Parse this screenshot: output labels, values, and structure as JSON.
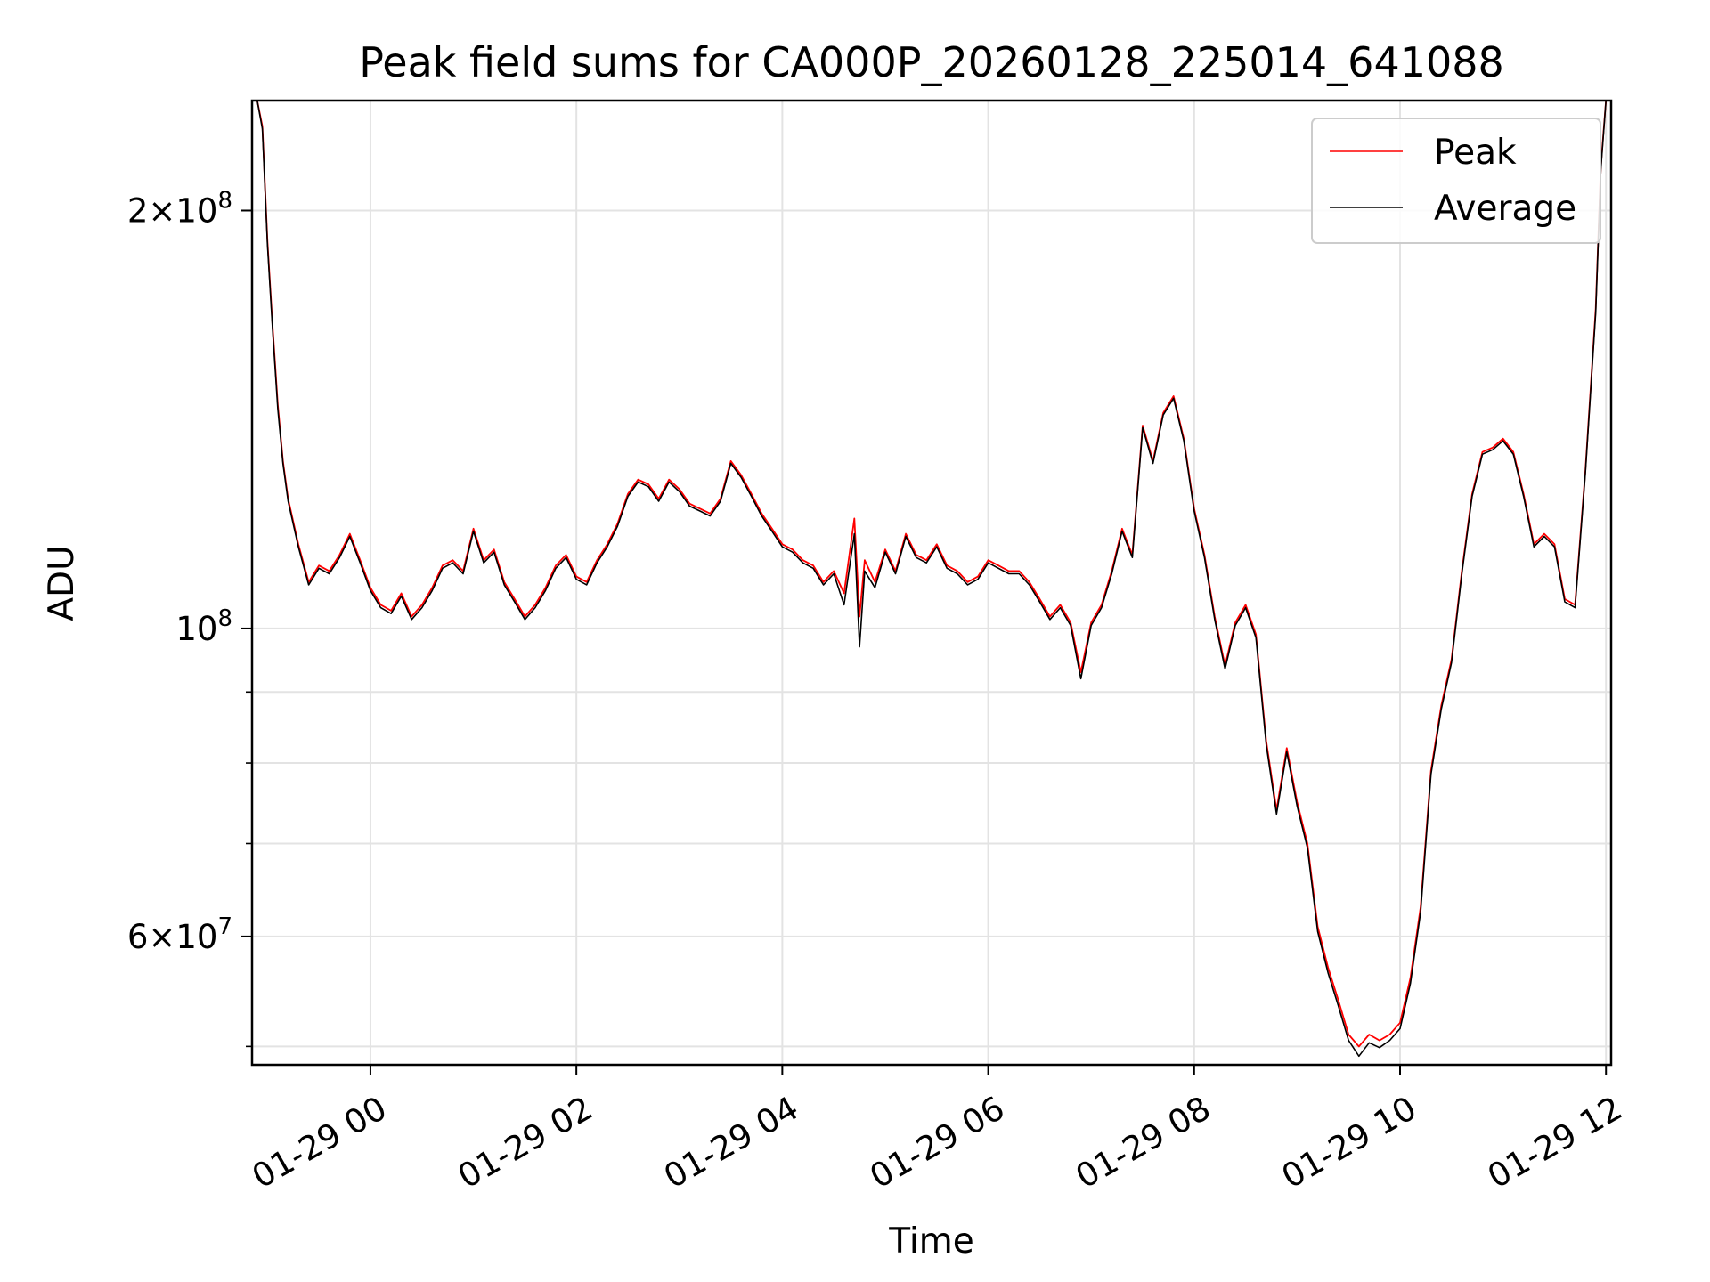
{
  "chart_data": {
    "type": "line",
    "title": "Peak field sums for CA000P_20260128_225014_641088",
    "xlabel": "Time",
    "ylabel": "ADU",
    "yscale": "log",
    "xlim_hours": [
      -1.15,
      12.05
    ],
    "ylim": [
      48500000,
      240000000
    ],
    "grid": true,
    "legend_position": "top-right",
    "x_ticks": [
      {
        "hour": 0,
        "label": "01-29 00"
      },
      {
        "hour": 2,
        "label": "01-29 02"
      },
      {
        "hour": 4,
        "label": "01-29 04"
      },
      {
        "hour": 6,
        "label": "01-29 06"
      },
      {
        "hour": 8,
        "label": "01-29 08"
      },
      {
        "hour": 10,
        "label": "01-29 10"
      },
      {
        "hour": 12,
        "label": "01-29 12"
      }
    ],
    "y_major_ticks": [
      {
        "value": 200000000,
        "mantissa": "2",
        "exponent": "8"
      },
      {
        "value": 100000000,
        "mantissa": "",
        "exponent": "8"
      },
      {
        "value": 60000000,
        "mantissa": "6",
        "exponent": "7"
      }
    ],
    "y_minor_ticks": [
      50000000,
      70000000,
      80000000,
      90000000
    ],
    "x_time_hours": [
      -1.1,
      -1.05,
      -1.0,
      -0.95,
      -0.9,
      -0.85,
      -0.8,
      -0.7,
      -0.6,
      -0.5,
      -0.4,
      -0.3,
      -0.2,
      -0.1,
      0.0,
      0.1,
      0.2,
      0.3,
      0.4,
      0.5,
      0.6,
      0.7,
      0.8,
      0.9,
      1.0,
      1.1,
      1.2,
      1.3,
      1.4,
      1.5,
      1.6,
      1.7,
      1.8,
      1.9,
      2.0,
      2.1,
      2.2,
      2.3,
      2.4,
      2.5,
      2.6,
      2.7,
      2.8,
      2.9,
      3.0,
      3.1,
      3.2,
      3.3,
      3.4,
      3.5,
      3.6,
      3.7,
      3.8,
      3.9,
      4.0,
      4.1,
      4.2,
      4.3,
      4.4,
      4.5,
      4.6,
      4.7,
      4.75,
      4.8,
      4.9,
      5.0,
      5.1,
      5.2,
      5.3,
      5.4,
      5.5,
      5.6,
      5.7,
      5.8,
      5.9,
      6.0,
      6.1,
      6.2,
      6.3,
      6.4,
      6.5,
      6.6,
      6.7,
      6.8,
      6.9,
      7.0,
      7.1,
      7.2,
      7.3,
      7.4,
      7.5,
      7.6,
      7.7,
      7.8,
      7.9,
      8.0,
      8.1,
      8.2,
      8.3,
      8.4,
      8.5,
      8.6,
      8.7,
      8.8,
      8.9,
      9.0,
      9.1,
      9.2,
      9.3,
      9.4,
      9.5,
      9.6,
      9.7,
      9.8,
      9.9,
      10.0,
      10.1,
      10.2,
      10.3,
      10.4,
      10.5,
      10.6,
      10.7,
      10.8,
      10.9,
      11.0,
      11.1,
      11.2,
      11.3,
      11.4,
      11.5,
      11.6,
      11.7,
      11.8,
      11.9,
      11.95,
      12.0
    ],
    "series": [
      {
        "name": "Peak",
        "color": "#ff0000",
        "values": [
          240000000,
          230000000,
          190000000,
          165000000,
          145000000,
          132000000,
          124000000,
          115000000,
          108000000,
          111000000,
          110000000,
          113000000,
          117000000,
          112000000,
          107000000,
          104000000,
          103000000,
          106000000,
          102000000,
          104000000,
          107000000,
          111000000,
          112000000,
          110000000,
          118000000,
          112000000,
          114000000,
          108000000,
          105000000,
          102000000,
          104000000,
          107000000,
          111000000,
          113000000,
          109000000,
          108000000,
          112000000,
          115000000,
          119000000,
          125000000,
          128000000,
          127000000,
          124000000,
          128000000,
          126000000,
          123000000,
          122000000,
          121000000,
          124000000,
          132000000,
          129000000,
          125000000,
          121000000,
          118000000,
          115000000,
          114000000,
          112000000,
          111000000,
          108000000,
          110000000,
          106000000,
          120000000,
          102000000,
          112000000,
          108000000,
          114000000,
          110000000,
          117000000,
          113000000,
          112000000,
          115000000,
          111000000,
          110000000,
          108000000,
          109000000,
          112000000,
          111000000,
          110000000,
          110000000,
          108000000,
          105000000,
          102000000,
          104000000,
          101000000,
          93000000,
          101000000,
          104000000,
          110000000,
          118000000,
          113000000,
          140000000,
          132000000,
          143000000,
          147000000,
          137000000,
          122000000,
          113000000,
          102000000,
          94000000,
          101000000,
          104000000,
          99000000,
          83000000,
          74000000,
          82000000,
          75000000,
          70000000,
          61000000,
          57000000,
          54000000,
          51000000,
          50000000,
          51000000,
          50500000,
          51000000,
          52000000,
          56000000,
          63000000,
          79000000,
          88000000,
          95000000,
          110000000,
          125000000,
          134000000,
          135000000,
          137000000,
          134000000,
          125000000,
          115000000,
          117000000,
          115000000,
          105000000,
          104000000,
          130000000,
          170000000,
          215000000,
          240000000
        ]
      },
      {
        "name": "Average",
        "color": "#000000",
        "values": [
          240000000,
          229000000,
          189000000,
          164000000,
          144000000,
          131500000,
          123500000,
          114500000,
          107500000,
          110500000,
          109500000,
          112500000,
          116500000,
          111500000,
          106500000,
          103500000,
          102500000,
          105500000,
          101500000,
          103500000,
          106500000,
          110500000,
          111500000,
          109500000,
          117500000,
          111500000,
          113500000,
          107500000,
          104500000,
          101500000,
          103500000,
          106500000,
          110500000,
          112500000,
          108500000,
          107500000,
          111500000,
          114500000,
          118500000,
          124500000,
          127500000,
          126500000,
          123500000,
          127500000,
          125500000,
          122500000,
          121500000,
          120500000,
          123500000,
          131500000,
          128500000,
          124500000,
          120500000,
          117500000,
          114500000,
          113500000,
          111500000,
          110500000,
          107500000,
          109500000,
          104000000,
          117000000,
          97000000,
          110000000,
          107000000,
          113500000,
          109500000,
          116500000,
          112500000,
          111500000,
          114500000,
          110500000,
          109500000,
          107500000,
          108500000,
          111500000,
          110500000,
          109500000,
          109500000,
          107500000,
          104500000,
          101500000,
          103500000,
          100500000,
          92000000,
          100500000,
          103500000,
          109500000,
          117500000,
          112500000,
          139500000,
          131500000,
          142500000,
          146500000,
          136500000,
          121500000,
          112500000,
          101500000,
          93500000,
          100500000,
          103500000,
          98500000,
          82500000,
          73500000,
          81500000,
          74500000,
          69500000,
          60500000,
          56500000,
          53500000,
          50500000,
          49200000,
          50300000,
          49900000,
          50500000,
          51500000,
          55500000,
          62500000,
          78500000,
          87500000,
          94500000,
          109500000,
          124500000,
          133500000,
          134500000,
          136500000,
          133500000,
          124500000,
          114500000,
          116500000,
          114500000,
          104500000,
          103500000,
          129500000,
          169000000,
          214000000,
          240000000
        ]
      }
    ]
  }
}
